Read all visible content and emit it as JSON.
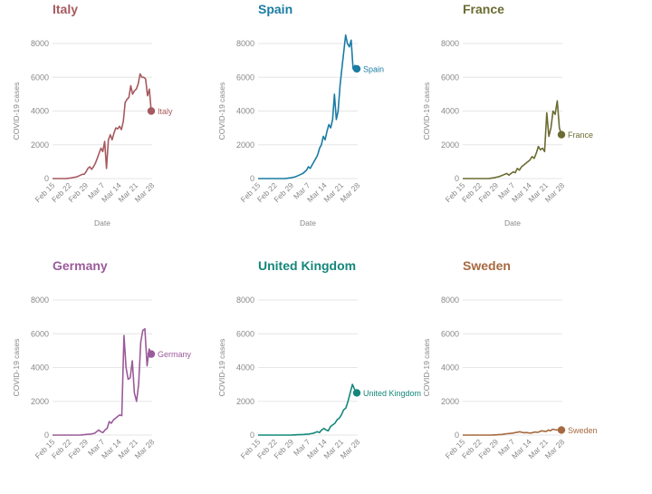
{
  "chart_data": [
    {
      "type": "line",
      "title": "Italy",
      "color": "#a65a5f",
      "xlabel": "Date",
      "ylabel": "COVID-19 cases",
      "ylim": [
        0,
        8000
      ],
      "yticks": [
        "0",
        "2000",
        "4000",
        "6000",
        "8000"
      ],
      "xticks": [
        "Feb 15",
        "Feb 22",
        "Feb 29",
        "Mar 7",
        "Mar 14",
        "Mar 21",
        "Mar 28"
      ],
      "end_label": "Italy",
      "values": [
        0,
        0,
        0,
        0,
        0,
        0,
        0,
        0,
        10,
        20,
        40,
        60,
        80,
        100,
        150,
        200,
        250,
        250,
        400,
        600,
        700,
        550,
        700,
        900,
        1200,
        1500,
        1800,
        1600,
        2200,
        600,
        2300,
        2600,
        2300,
        2700,
        3000,
        2950,
        3100,
        2900,
        3400,
        4500,
        4700,
        4800,
        5500,
        5000,
        5200,
        5300,
        5600,
        6200,
        6000,
        6000,
        5900,
        4900,
        5300,
        4000
      ]
    },
    {
      "type": "line",
      "title": "Spain",
      "color": "#1a7ca3",
      "xlabel": "Date",
      "ylabel": "COVID-19 cases",
      "ylim": [
        0,
        8000
      ],
      "yticks": [
        "0",
        "2000",
        "4000",
        "6000",
        "8000"
      ],
      "xticks": [
        "Feb 15",
        "Feb 22",
        "Feb 29",
        "Mar 7",
        "Mar 14",
        "Mar 21",
        "Mar 28"
      ],
      "end_label": "Spain",
      "values": [
        0,
        0,
        0,
        0,
        0,
        0,
        0,
        0,
        0,
        0,
        0,
        0,
        0,
        0,
        0,
        10,
        20,
        40,
        50,
        80,
        100,
        150,
        200,
        250,
        300,
        400,
        500,
        700,
        600,
        800,
        1000,
        1200,
        1400,
        1800,
        2000,
        2500,
        2300,
        2800,
        3200,
        3000,
        3500,
        5000,
        3500,
        4000,
        5500,
        6500,
        7500,
        8500,
        8000,
        7800,
        8200,
        6500,
        6700,
        6500
      ]
    },
    {
      "type": "line",
      "title": "France",
      "color": "#6b6b32",
      "xlabel": "Date",
      "ylabel": "COVID-19 cases",
      "ylim": [
        0,
        8000
      ],
      "yticks": [
        "0",
        "2000",
        "4000",
        "6000",
        "8000"
      ],
      "xticks": [
        "Feb 15",
        "Feb 22",
        "Feb 29",
        "Mar 7",
        "Mar 14",
        "Mar 21",
        "Mar 28"
      ],
      "end_label": "France",
      "values": [
        0,
        0,
        0,
        0,
        0,
        0,
        0,
        0,
        0,
        0,
        0,
        0,
        0,
        10,
        30,
        50,
        80,
        100,
        150,
        200,
        250,
        300,
        200,
        300,
        400,
        350,
        600,
        500,
        700,
        800,
        900,
        1000,
        1100,
        1300,
        1200,
        1500,
        1900,
        1700,
        1800,
        1600,
        3900,
        2500,
        3000,
        4000,
        3800,
        4600,
        3000,
        2600
      ]
    },
    {
      "type": "line",
      "title": "Germany",
      "color": "#9a5b9a",
      "xlabel": "Date",
      "ylabel": "COVID-19 cases",
      "ylim": [
        0,
        8000
      ],
      "yticks": [
        "0",
        "2000",
        "4000",
        "6000",
        "8000"
      ],
      "xticks": [
        "Feb 15",
        "Feb 22",
        "Feb 29",
        "Mar 7",
        "Mar 14",
        "Mar 21",
        "Mar 28"
      ],
      "end_label": "Germany",
      "values": [
        0,
        0,
        0,
        0,
        0,
        0,
        0,
        0,
        0,
        0,
        0,
        0,
        0,
        0,
        10,
        20,
        40,
        50,
        60,
        80,
        100,
        200,
        300,
        200,
        150,
        300,
        400,
        800,
        700,
        900,
        1000,
        1100,
        1200,
        1150,
        5900,
        4000,
        3300,
        3400,
        4400,
        2500,
        2000,
        3000,
        5500,
        6200,
        6300,
        4100,
        5100,
        4800
      ]
    },
    {
      "type": "line",
      "title": "United Kingdom",
      "color": "#14877a",
      "xlabel": "Date",
      "ylabel": "COVID-19 cases",
      "ylim": [
        0,
        8000
      ],
      "yticks": [
        "0",
        "2000",
        "4000",
        "6000",
        "8000"
      ],
      "xticks": [
        "Feb 15",
        "Feb 22",
        "Feb 29",
        "Mar 7",
        "Mar 14",
        "Mar 21",
        "Mar 28"
      ],
      "end_label": "United Kingdom",
      "values": [
        0,
        0,
        0,
        0,
        0,
        0,
        0,
        0,
        0,
        0,
        0,
        0,
        0,
        0,
        0,
        0,
        10,
        10,
        20,
        20,
        30,
        40,
        50,
        60,
        80,
        100,
        150,
        200,
        150,
        300,
        400,
        300,
        250,
        500,
        600,
        700,
        900,
        1000,
        1200,
        1500,
        1600,
        2000,
        2500,
        3000,
        2700,
        2500
      ]
    },
    {
      "type": "line",
      "title": "Sweden",
      "color": "#a6693f",
      "xlabel": "Date",
      "ylabel": "COVID-19 cases",
      "ylim": [
        0,
        8000
      ],
      "yticks": [
        "0",
        "2000",
        "4000",
        "6000",
        "8000"
      ],
      "xticks": [
        "Feb 15",
        "Feb 22",
        "Feb 29",
        "Mar 7",
        "Mar 14",
        "Mar 21",
        "Mar 28"
      ],
      "end_label": "Sweden",
      "values": [
        0,
        0,
        0,
        0,
        0,
        0,
        0,
        0,
        0,
        0,
        0,
        0,
        0,
        0,
        10,
        10,
        20,
        30,
        40,
        60,
        80,
        90,
        100,
        120,
        150,
        170,
        200,
        160,
        140,
        150,
        130,
        120,
        150,
        180,
        160,
        200,
        250,
        230,
        210,
        300,
        260,
        350,
        320,
        300,
        330,
        300
      ]
    }
  ]
}
